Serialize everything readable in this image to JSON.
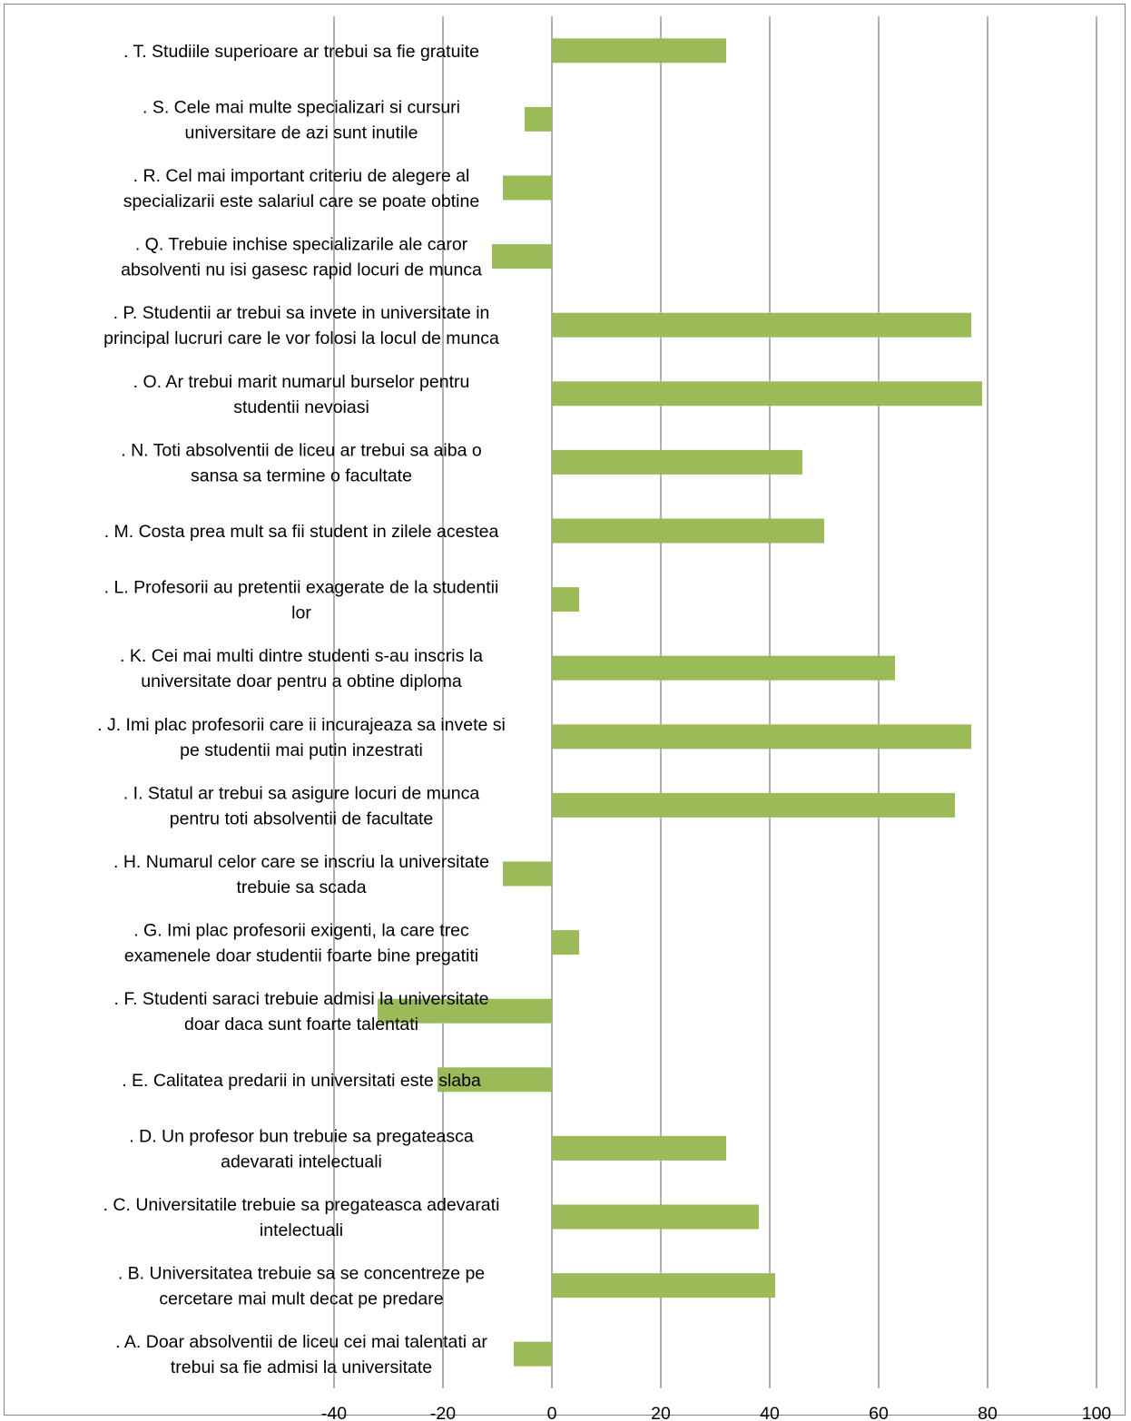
{
  "chart_data": {
    "type": "bar",
    "orientation": "horizontal",
    "title": "",
    "xlabel": "",
    "ylabel": "",
    "xlim": [
      -40,
      100
    ],
    "xticks": [
      -40,
      -20,
      0,
      20,
      40,
      60,
      80,
      100
    ],
    "grid": "vertical",
    "legend": "none",
    "bar_color": "#9bbb59",
    "categories": [
      ". T. Studiile superioare ar trebui sa fie gratuite",
      ". S. Cele mai multe specializari si cursuri universitare de azi sunt inutile",
      ". R. Cel mai important criteriu de alegere al specializarii este salariul care se poate obtine",
      ". Q. Trebuie inchise specializarile ale caror absolventi nu isi gasesc rapid locuri de munca",
      ". P. Studentii ar trebui sa invete in universitate in principal lucruri care le vor folosi la locul de munca",
      ". O. Ar trebui marit numarul burselor pentru studentii nevoiasi",
      ". N. Toti absolventii de liceu ar trebui sa aiba o sansa sa termine o facultate",
      ". M. Costa prea mult sa fii student in zilele acestea",
      ". L. Profesorii au pretentii exagerate de la studentii lor",
      ". K. Cei mai multi dintre studenti s-au inscris la universitate doar pentru a obtine diploma",
      ". J. Imi plac profesorii care ii incurajeaza sa invete si pe studentii mai putin inzestrati",
      ". I. Statul ar trebui sa asigure locuri de munca pentru toti absolventii de facultate",
      ". H. Numarul celor care se inscriu la universitate trebuie sa scada",
      ". G. Imi plac profesorii exigenti, la care trec examenele doar studentii foarte bine pregatiti",
      ". F. Studenti saraci trebuie admisi la universitate doar daca sunt foarte talentati",
      ". E. Calitatea predarii in universitati este slaba",
      ". D. Un profesor bun trebuie sa pregateasca adevarati intelectuali",
      ". C. Universitatile trebuie sa pregateasca adevarati intelectuali",
      ". B. Universitatea trebuie sa se concentreze pe cercetare mai mult decat pe predare",
      ". A. Doar absolventii de liceu cei mai talentati ar trebui sa fie admisi la universitate"
    ],
    "label_lines": [
      [
        ". T. Studiile superioare ar trebui sa fie gratuite"
      ],
      [
        ". S. Cele mai multe specializari si cursuri",
        "universitare de azi sunt inutile"
      ],
      [
        ". R. Cel mai important criteriu de alegere al",
        "specializarii este salariul care se poate obtine"
      ],
      [
        ". Q. Trebuie inchise specializarile ale caror",
        "absolventi nu isi gasesc rapid locuri de munca"
      ],
      [
        ". P. Studentii ar trebui sa invete in universitate in",
        "principal lucruri care le vor folosi la locul de munca"
      ],
      [
        ". O. Ar trebui marit numarul burselor pentru",
        "studentii nevoiasi"
      ],
      [
        ". N. Toti absolventii de liceu ar trebui sa aiba o",
        "sansa sa termine o facultate"
      ],
      [
        ". M. Costa prea mult sa fii student in zilele acestea"
      ],
      [
        ". L. Profesorii au pretentii exagerate de la studentii",
        "lor"
      ],
      [
        ". K. Cei mai multi dintre studenti s-au inscris la",
        "universitate doar pentru a obtine diploma"
      ],
      [
        ". J. Imi plac profesorii care ii incurajeaza sa invete si",
        "pe studentii mai putin inzestrati"
      ],
      [
        ". I. Statul ar trebui sa asigure locuri de munca",
        "pentru toti absolventii de facultate"
      ],
      [
        ". H. Numarul celor care se inscriu la universitate",
        "trebuie sa scada"
      ],
      [
        ". G. Imi plac profesorii exigenti, la care trec",
        "examenele doar studentii foarte bine pregatiti"
      ],
      [
        ". F. Studenti saraci trebuie admisi la universitate",
        "doar daca sunt foarte talentati"
      ],
      [
        ". E. Calitatea predarii in universitati este slaba"
      ],
      [
        ". D. Un profesor bun trebuie sa pregateasca",
        "adevarati intelectuali"
      ],
      [
        ". C. Universitatile trebuie sa pregateasca adevarati",
        "intelectuali"
      ],
      [
        ". B. Universitatea trebuie sa se concentreze pe",
        "cercetare mai mult decat pe predare"
      ],
      [
        ". A. Doar absolventii de liceu cei mai talentati ar",
        "trebui sa fie admisi la universitate"
      ]
    ],
    "values": [
      32,
      -5,
      -9,
      -11,
      77,
      79,
      46,
      50,
      5,
      63,
      77,
      74,
      -9,
      5,
      -32,
      -21,
      32,
      38,
      41,
      -7
    ]
  }
}
